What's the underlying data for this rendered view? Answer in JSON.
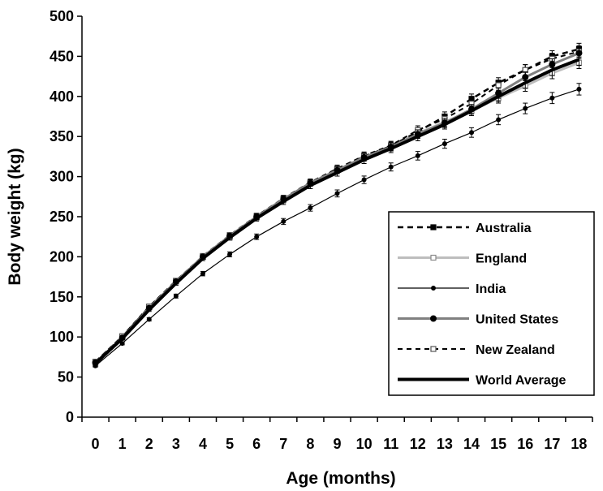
{
  "chart_data": {
    "type": "line",
    "title": "",
    "xlabel": "Age (months)",
    "ylabel": "Body weight (kg)",
    "x": [
      0,
      1,
      2,
      3,
      4,
      5,
      6,
      7,
      8,
      9,
      10,
      11,
      12,
      13,
      14,
      15,
      16,
      17,
      18
    ],
    "xlim": [
      -0.5,
      18.5
    ],
    "ylim": [
      0,
      500
    ],
    "yticks": [
      0,
      50,
      100,
      150,
      200,
      250,
      300,
      350,
      400,
      450,
      500
    ],
    "legend_position": "right-middle",
    "grid": false,
    "series": [
      {
        "name": "Australia",
        "style": "dashed-square",
        "color": "#000000",
        "values": [
          69,
          100,
          137,
          170,
          200,
          226,
          250,
          272,
          292,
          309,
          325,
          338,
          356,
          375,
          397,
          417,
          433,
          450,
          459
        ]
      },
      {
        "name": "England",
        "style": "light-solid-open-square",
        "color": "#bdbdbd",
        "values": [
          66,
          100,
          137,
          169,
          200,
          224,
          249,
          271,
          292,
          308,
          324,
          337,
          354,
          368,
          382,
          398,
          413,
          429,
          442
        ]
      },
      {
        "name": "India",
        "style": "thin-solid-small-marker",
        "color": "#000000",
        "values": [
          64,
          92,
          122,
          151,
          179,
          203,
          225,
          244,
          261,
          279,
          296,
          312,
          326,
          341,
          355,
          371,
          385,
          398,
          409
        ]
      },
      {
        "name": "United States",
        "style": "gray-solid-filled-circle",
        "color": "#808080",
        "values": [
          68,
          99,
          136,
          169,
          200,
          226,
          250,
          272,
          292,
          308,
          324,
          337,
          353,
          367,
          384,
          404,
          424,
          440,
          454
        ]
      },
      {
        "name": "New Zealand",
        "style": "dashed-open-square",
        "color": "#000000",
        "values": [
          69,
          101,
          138,
          170,
          201,
          227,
          251,
          273,
          293,
          310,
          326,
          339,
          358,
          372,
          391,
          414,
          433,
          447,
          456
        ]
      },
      {
        "name": "World Average",
        "style": "thick-solid",
        "color": "#000000",
        "values": [
          67,
          98,
          134,
          167,
          198,
          224,
          248,
          269,
          289,
          305,
          321,
          335,
          350,
          365,
          382,
          400,
          417,
          433,
          446
        ]
      }
    ]
  }
}
